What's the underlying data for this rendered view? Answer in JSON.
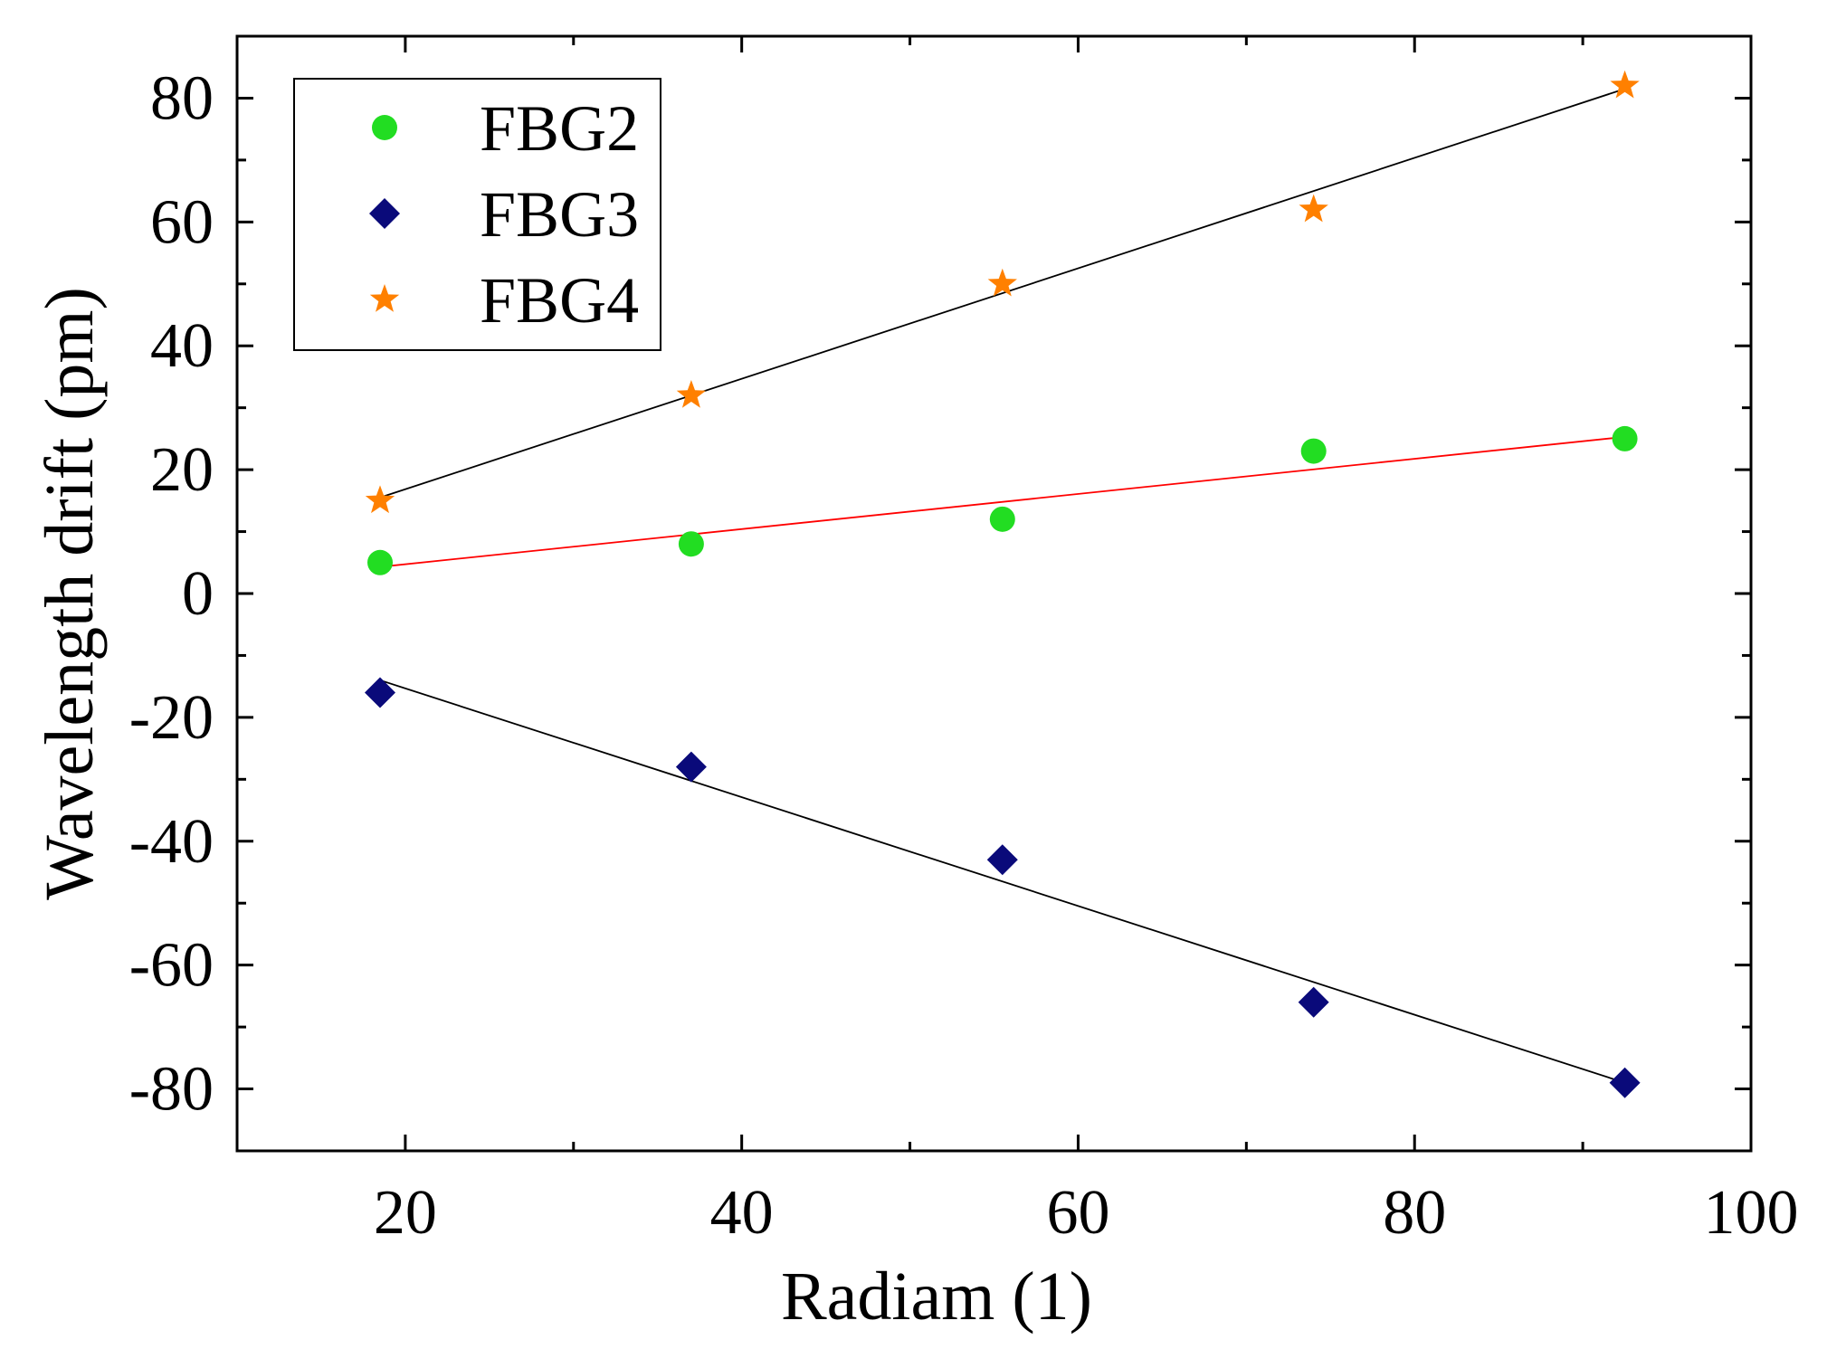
{
  "chart_data": {
    "type": "scatter",
    "title": "",
    "xlabel": "Radiam (1)",
    "ylabel": "Wavelength drift (pm)",
    "xlim": [
      10,
      100
    ],
    "ylim": [
      -90,
      90
    ],
    "xticks": [
      20,
      40,
      60,
      80,
      100
    ],
    "yticks": [
      -80,
      -60,
      -40,
      -20,
      0,
      20,
      40,
      60,
      80
    ],
    "xtick_labels": [
      "20",
      "40",
      "60",
      "80",
      "100"
    ],
    "ytick_labels": [
      "-80",
      "-60",
      "-40",
      "-20",
      "0",
      "20",
      "40",
      "60",
      "80"
    ],
    "x": [
      18.5,
      37,
      55.5,
      74,
      92.5
    ],
    "series": [
      {
        "name": "FBG2",
        "marker": "circle",
        "color": "#22dd22",
        "values": [
          5,
          8,
          12,
          23,
          25
        ],
        "fit": {
          "color": "#ff0000",
          "y_start": 4.3,
          "y_end": 25.3
        }
      },
      {
        "name": "FBG3",
        "marker": "diamond",
        "color": "#0a0a7a",
        "values": [
          -16,
          -28,
          -43,
          -66,
          -79
        ],
        "fit": {
          "color": "#000000",
          "y_start": -14,
          "y_end": -79
        }
      },
      {
        "name": "FBG4",
        "marker": "star",
        "color": "#ff8000",
        "values": [
          15,
          32,
          50,
          62,
          82
        ],
        "fit": {
          "color": "#000000",
          "y_start": 15.5,
          "y_end": 81.5
        }
      }
    ],
    "legend": {
      "position": "top-left"
    },
    "grid": false
  }
}
